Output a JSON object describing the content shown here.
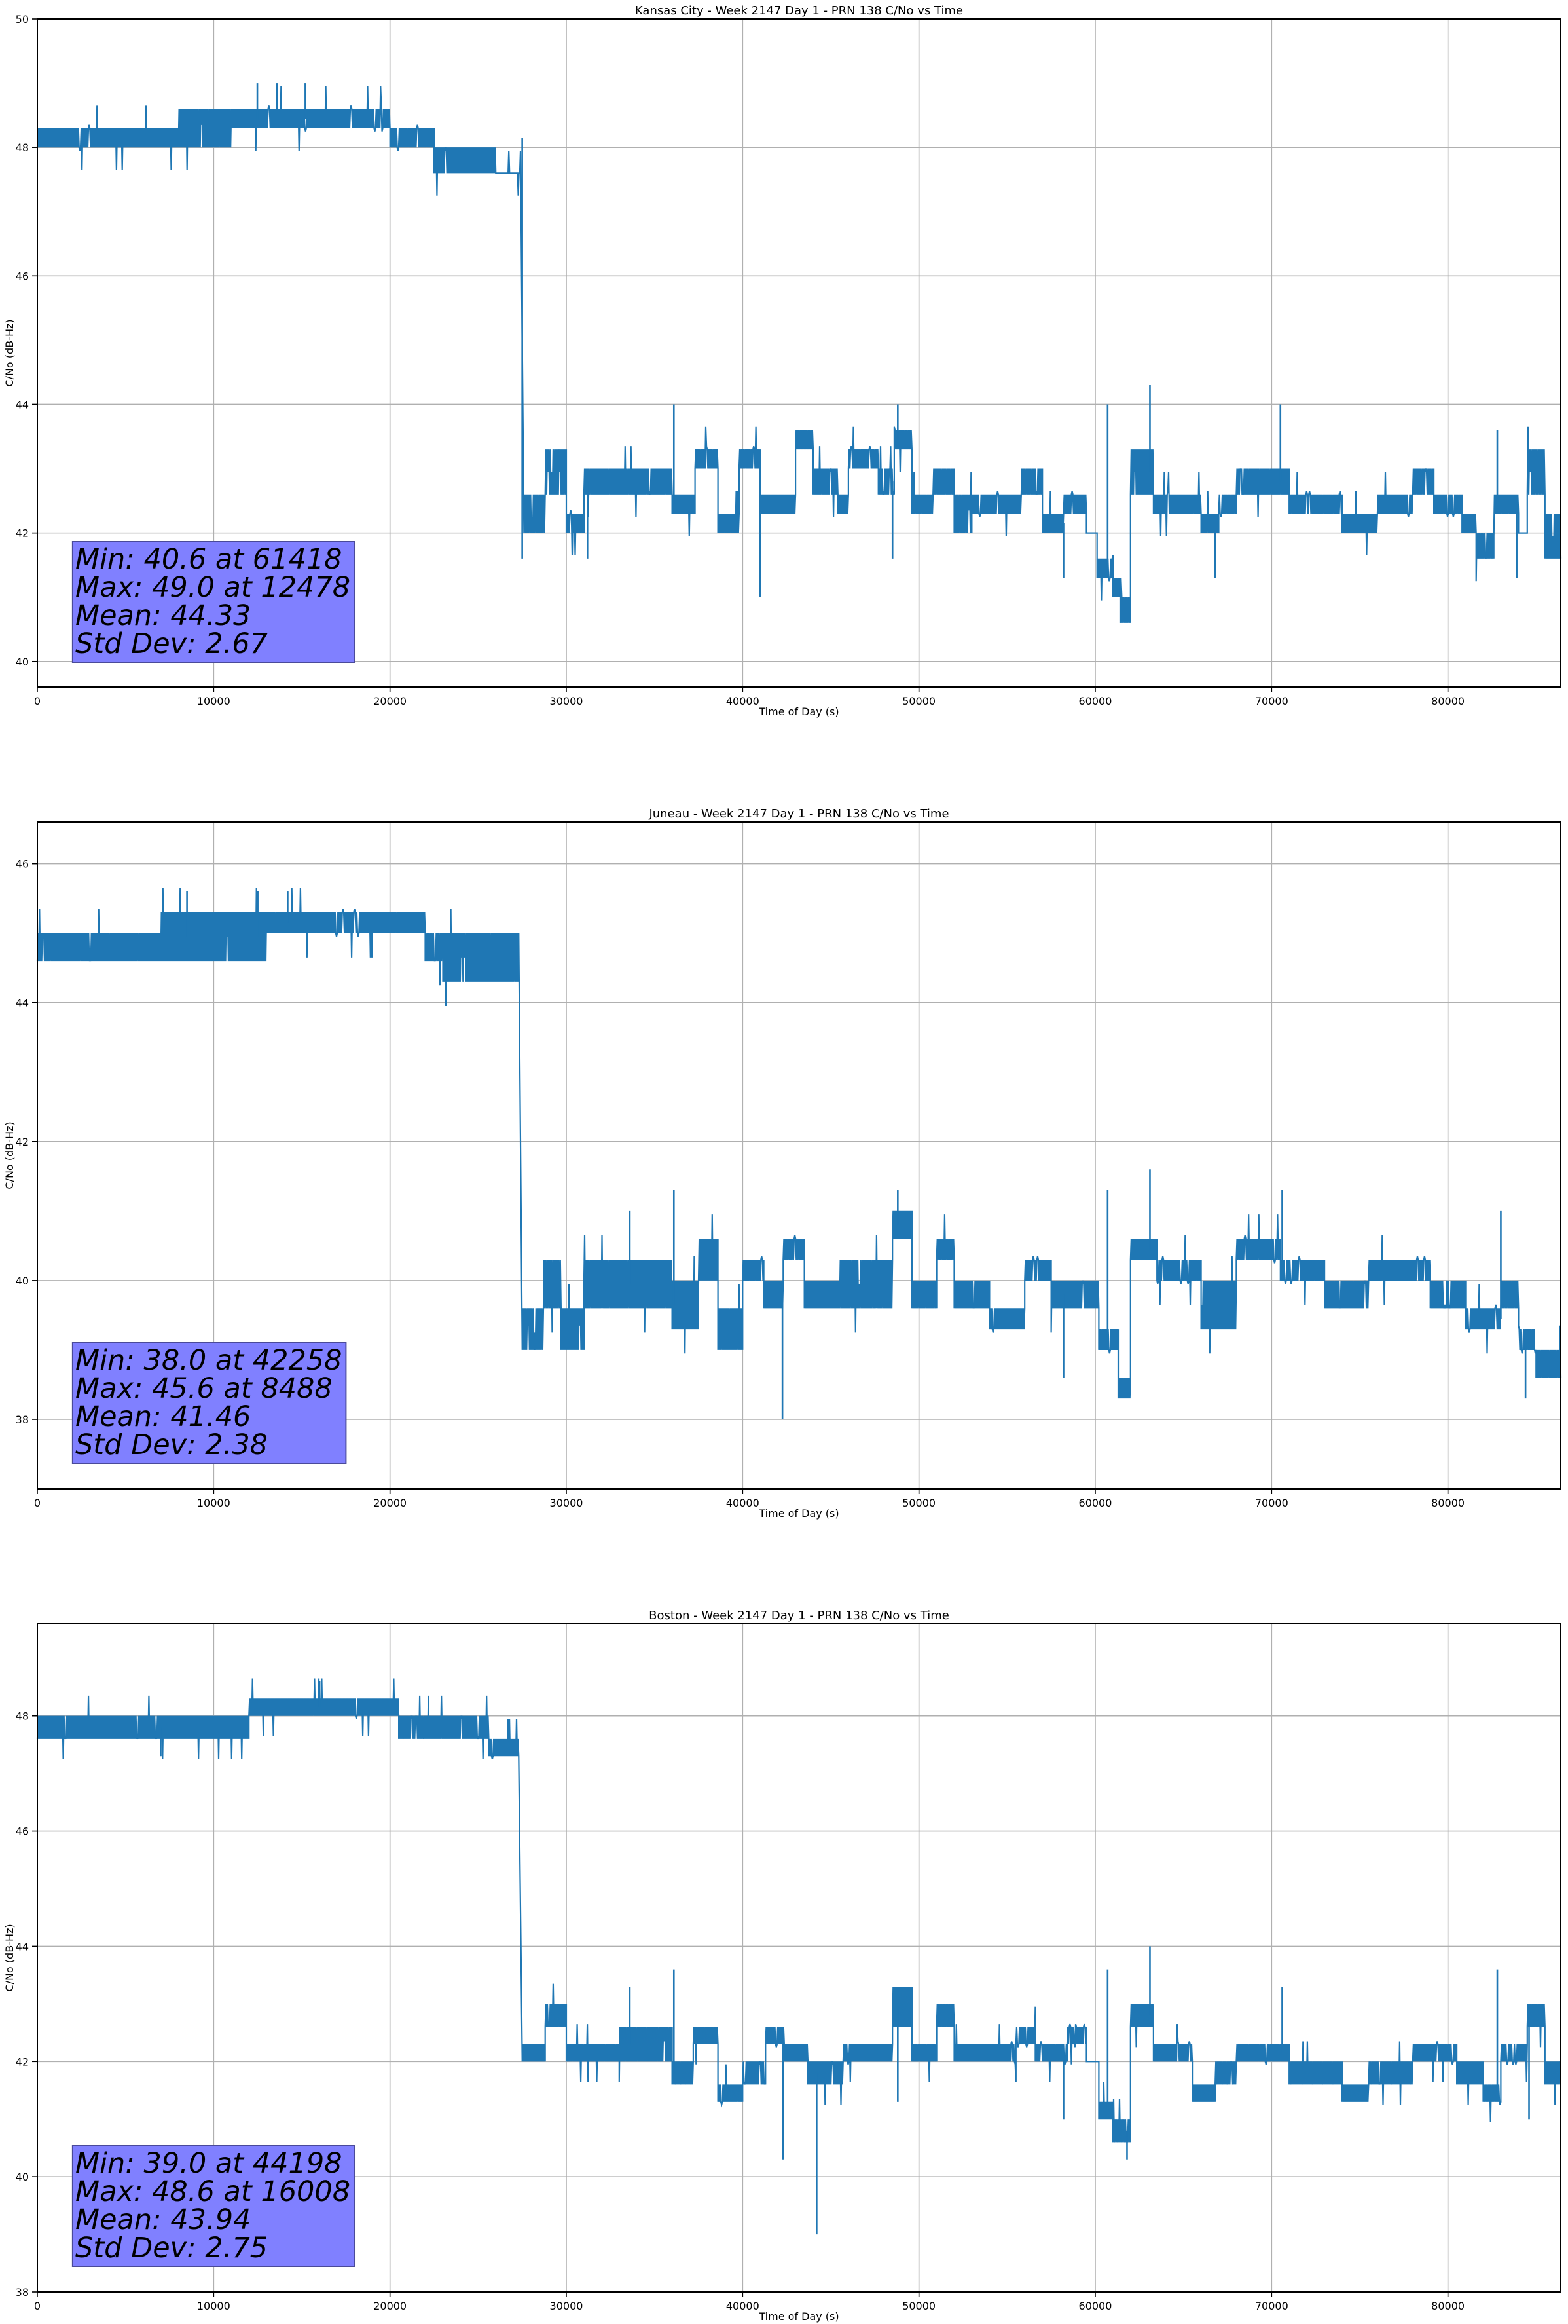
{
  "chart_data": [
    {
      "type": "line",
      "title": "Kansas City - Week 2147 Day 1 - PRN 138 C/No vs Time",
      "xlabel": "Time of Day (s)",
      "ylabel": "C/No (dB-Hz)",
      "xlim": [
        0,
        86400
      ],
      "ylim": [
        39.6,
        50
      ],
      "xticks": [
        0,
        10000,
        20000,
        30000,
        40000,
        50000,
        60000,
        70000,
        80000
      ],
      "yticks": [
        40,
        42,
        44,
        46,
        48,
        50
      ],
      "grid": true,
      "color": "#1f77b4",
      "stats": [
        "Min: 40.6 at 61418",
        "Max: 49.0 at 12478",
        "Mean: 44.33",
        "Std Dev: 2.67"
      ],
      "stats_location": "bottom-left",
      "segments_note": "[t_start, t_end, low dB, high dB]",
      "segments": [
        [
          0,
          8000,
          48.0,
          48.3
        ],
        [
          8000,
          11000,
          48.0,
          48.6
        ],
        [
          11000,
          20000,
          48.3,
          48.6
        ],
        [
          20000,
          22500,
          48.0,
          48.3
        ],
        [
          22500,
          26000,
          47.6,
          48.0
        ],
        [
          26000,
          27400,
          47.6,
          47.6
        ],
        [
          27600,
          28800,
          42.0,
          42.6
        ],
        [
          28800,
          30000,
          42.6,
          43.3
        ],
        [
          30000,
          31000,
          42.0,
          42.3
        ],
        [
          31000,
          36000,
          42.6,
          43.0
        ],
        [
          36000,
          37300,
          42.3,
          42.6
        ],
        [
          37300,
          38600,
          43.0,
          43.3
        ],
        [
          38600,
          39800,
          42.0,
          42.3
        ],
        [
          39800,
          41000,
          43.0,
          43.3
        ],
        [
          41000,
          43000,
          42.3,
          42.6
        ],
        [
          43000,
          44000,
          43.3,
          43.6
        ],
        [
          44000,
          45400,
          42.6,
          43.0
        ],
        [
          45400,
          46000,
          42.3,
          42.6
        ],
        [
          46000,
          47700,
          43.0,
          43.3
        ],
        [
          47700,
          48600,
          42.6,
          43.0
        ],
        [
          48600,
          49600,
          43.3,
          43.6
        ],
        [
          49600,
          50800,
          42.3,
          42.6
        ],
        [
          50800,
          52000,
          42.6,
          43.0
        ],
        [
          52000,
          53000,
          42.0,
          42.6
        ],
        [
          53000,
          55800,
          42.3,
          42.6
        ],
        [
          55800,
          57000,
          42.6,
          43.0
        ],
        [
          57000,
          58200,
          42.0,
          42.3
        ],
        [
          58200,
          59500,
          42.3,
          42.6
        ],
        [
          59500,
          60100,
          42.0,
          42.0
        ],
        [
          60100,
          61000,
          41.3,
          41.6
        ],
        [
          61000,
          61500,
          41.0,
          41.3
        ],
        [
          61500,
          62000,
          40.6,
          41.0
        ],
        [
          62000,
          63300,
          42.6,
          43.3
        ],
        [
          63300,
          66000,
          42.3,
          42.6
        ],
        [
          66000,
          67000,
          42.0,
          42.3
        ],
        [
          67000,
          68000,
          42.3,
          42.6
        ],
        [
          68000,
          71000,
          42.6,
          43.0
        ],
        [
          71000,
          74000,
          42.3,
          42.6
        ],
        [
          74000,
          76000,
          42.0,
          42.3
        ],
        [
          76000,
          78000,
          42.3,
          42.6
        ],
        [
          78000,
          79200,
          42.6,
          43.0
        ],
        [
          79200,
          80800,
          42.3,
          42.6
        ],
        [
          80800,
          81600,
          42.0,
          42.3
        ],
        [
          81600,
          82600,
          41.6,
          42.0
        ],
        [
          82600,
          84000,
          42.3,
          42.6
        ],
        [
          84000,
          84500,
          42.0,
          42.0
        ],
        [
          84500,
          85500,
          42.6,
          43.3
        ],
        [
          85500,
          86400,
          41.6,
          42.3
        ]
      ],
      "spikes": [
        [
          12478,
          49.0
        ],
        [
          13600,
          49.0
        ],
        [
          15200,
          49.0
        ],
        [
          27500,
          41.6
        ],
        [
          31200,
          41.6
        ],
        [
          36100,
          44.0
        ],
        [
          41000,
          41.0
        ],
        [
          48800,
          44.0
        ],
        [
          48500,
          41.6
        ],
        [
          58200,
          41.3
        ],
        [
          60700,
          44.0
        ],
        [
          61418,
          40.6
        ],
        [
          63100,
          44.3
        ],
        [
          66800,
          41.3
        ],
        [
          70500,
          44.0
        ],
        [
          82800,
          43.6
        ],
        [
          83900,
          41.3
        ]
      ]
    },
    {
      "type": "line",
      "title": "Juneau - Week 2147 Day 1 - PRN 138 C/No vs Time",
      "xlabel": "Time of Day (s)",
      "ylabel": "C/No (dB-Hz)",
      "xlim": [
        0,
        86400
      ],
      "ylim": [
        37.0,
        46.6
      ],
      "xticks": [
        0,
        10000,
        20000,
        30000,
        40000,
        50000,
        60000,
        70000,
        80000
      ],
      "yticks": [
        38,
        40,
        42,
        44,
        46
      ],
      "grid": true,
      "color": "#1f77b4",
      "stats": [
        "Min: 38.0 at 42258",
        "Max: 45.6 at 8488",
        "Mean: 41.46",
        "Std Dev: 2.38"
      ],
      "stats_location": "bottom-left",
      "segments": [
        [
          0,
          7000,
          44.6,
          45.0
        ],
        [
          7000,
          13000,
          44.6,
          45.3
        ],
        [
          13000,
          22000,
          45.0,
          45.3
        ],
        [
          22000,
          23000,
          44.6,
          45.0
        ],
        [
          23000,
          27300,
          44.3,
          45.0
        ],
        [
          27500,
          28700,
          39.0,
          39.6
        ],
        [
          28700,
          29700,
          39.6,
          40.3
        ],
        [
          29700,
          31000,
          39.0,
          39.6
        ],
        [
          31000,
          36000,
          39.6,
          40.3
        ],
        [
          36000,
          37500,
          39.3,
          40.0
        ],
        [
          37500,
          38600,
          40.0,
          40.6
        ],
        [
          38600,
          40000,
          39.0,
          39.6
        ],
        [
          40000,
          41200,
          40.0,
          40.3
        ],
        [
          41200,
          42300,
          39.6,
          40.0
        ],
        [
          42300,
          43500,
          40.3,
          40.6
        ],
        [
          43500,
          45500,
          39.6,
          40.0
        ],
        [
          45500,
          48500,
          39.6,
          40.3
        ],
        [
          48500,
          49600,
          40.6,
          41.0
        ],
        [
          49600,
          51000,
          39.6,
          40.0
        ],
        [
          51000,
          52000,
          40.3,
          40.6
        ],
        [
          52000,
          54000,
          39.6,
          40.0
        ],
        [
          54000,
          56000,
          39.3,
          39.6
        ],
        [
          56000,
          57500,
          40.0,
          40.3
        ],
        [
          57500,
          60200,
          39.6,
          40.0
        ],
        [
          60200,
          61300,
          39.0,
          39.3
        ],
        [
          61300,
          62000,
          38.3,
          38.6
        ],
        [
          62000,
          63500,
          40.3,
          40.6
        ],
        [
          63500,
          66000,
          40.0,
          40.3
        ],
        [
          66000,
          68000,
          39.3,
          40.0
        ],
        [
          68000,
          70500,
          40.3,
          40.6
        ],
        [
          70500,
          73000,
          40.0,
          40.3
        ],
        [
          73000,
          75500,
          39.6,
          40.0
        ],
        [
          75500,
          79000,
          40.0,
          40.3
        ],
        [
          79000,
          81000,
          39.6,
          40.0
        ],
        [
          81000,
          83000,
          39.3,
          39.6
        ],
        [
          83000,
          84000,
          39.6,
          40.0
        ],
        [
          84000,
          85000,
          39.0,
          39.3
        ],
        [
          85000,
          86400,
          38.6,
          39.0
        ]
      ],
      "spikes": [
        [
          8488,
          45.6
        ],
        [
          12500,
          45.6
        ],
        [
          14200,
          45.6
        ],
        [
          33600,
          41.0
        ],
        [
          36100,
          41.3
        ],
        [
          42258,
          38.0
        ],
        [
          48800,
          41.3
        ],
        [
          58200,
          38.6
        ],
        [
          60700,
          41.3
        ],
        [
          63100,
          41.6
        ],
        [
          70600,
          41.3
        ],
        [
          83000,
          41.0
        ],
        [
          84400,
          38.3
        ]
      ]
    },
    {
      "type": "line",
      "title": "Boston - Week 2147 Day 1 - PRN 138 C/No vs Time",
      "xlabel": "Time of Day (s)",
      "ylabel": "C/No (dB-Hz)",
      "xlim": [
        0,
        86400
      ],
      "ylim": [
        38.0,
        49.6
      ],
      "xticks": [
        0,
        10000,
        20000,
        30000,
        40000,
        50000,
        60000,
        70000,
        80000
      ],
      "yticks": [
        38,
        40,
        42,
        44,
        46,
        48
      ],
      "grid": true,
      "color": "#1f77b4",
      "stats": [
        "Min: 39.0 at 44198",
        "Max: 48.6 at 16008",
        "Mean: 43.94",
        "Std Dev: 2.75"
      ],
      "stats_location": "bottom-left",
      "segments": [
        [
          0,
          12000,
          47.6,
          48.0
        ],
        [
          12000,
          20500,
          48.0,
          48.3
        ],
        [
          20500,
          23000,
          47.6,
          48.0
        ],
        [
          23000,
          25600,
          47.6,
          48.0
        ],
        [
          25600,
          27300,
          47.3,
          47.6
        ],
        [
          27500,
          28800,
          42.0,
          42.3
        ],
        [
          28800,
          30000,
          42.6,
          43.0
        ],
        [
          30000,
          33000,
          42.0,
          42.3
        ],
        [
          33000,
          36000,
          42.0,
          42.6
        ],
        [
          36000,
          37200,
          41.6,
          42.0
        ],
        [
          37200,
          38600,
          42.3,
          42.6
        ],
        [
          38600,
          40000,
          41.3,
          41.6
        ],
        [
          40000,
          41300,
          41.6,
          42.0
        ],
        [
          41300,
          42400,
          42.3,
          42.6
        ],
        [
          42400,
          43700,
          42.0,
          42.3
        ],
        [
          43700,
          45700,
          41.6,
          42.0
        ],
        [
          45700,
          48500,
          42.0,
          42.3
        ],
        [
          48500,
          49600,
          42.6,
          43.3
        ],
        [
          49600,
          51000,
          42.0,
          42.3
        ],
        [
          51000,
          52000,
          42.6,
          43.0
        ],
        [
          52000,
          55500,
          42.0,
          42.3
        ],
        [
          55500,
          56600,
          42.3,
          42.6
        ],
        [
          56600,
          58400,
          42.0,
          42.3
        ],
        [
          58400,
          59500,
          42.3,
          42.6
        ],
        [
          59500,
          60200,
          42.0,
          42.0
        ],
        [
          60200,
          61000,
          41.0,
          41.3
        ],
        [
          61000,
          62000,
          40.6,
          41.0
        ],
        [
          62000,
          63300,
          42.6,
          43.0
        ],
        [
          63300,
          65500,
          42.0,
          42.3
        ],
        [
          65500,
          66800,
          41.3,
          41.6
        ],
        [
          66800,
          68000,
          41.6,
          42.0
        ],
        [
          68000,
          71000,
          42.0,
          42.3
        ],
        [
          71000,
          74000,
          41.6,
          42.0
        ],
        [
          74000,
          75500,
          41.3,
          41.6
        ],
        [
          75500,
          78000,
          41.6,
          42.0
        ],
        [
          78000,
          80500,
          42.0,
          42.3
        ],
        [
          80500,
          82000,
          41.6,
          42.0
        ],
        [
          82000,
          83000,
          41.3,
          41.6
        ],
        [
          83000,
          84500,
          42.0,
          42.3
        ],
        [
          84500,
          85500,
          42.6,
          43.0
        ],
        [
          85500,
          86400,
          41.6,
          42.0
        ]
      ],
      "spikes": [
        [
          7000,
          47.3
        ],
        [
          16008,
          48.6
        ],
        [
          33600,
          43.3
        ],
        [
          36100,
          43.6
        ],
        [
          42300,
          40.3
        ],
        [
          44198,
          39.0
        ],
        [
          48800,
          41.3
        ],
        [
          58200,
          41.0
        ],
        [
          60700,
          43.6
        ],
        [
          61800,
          40.3
        ],
        [
          63100,
          44.0
        ],
        [
          70600,
          43.3
        ],
        [
          82800,
          43.6
        ],
        [
          84600,
          41.0
        ]
      ]
    }
  ]
}
